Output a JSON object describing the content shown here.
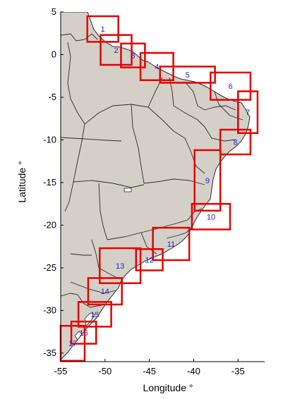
{
  "axes": {
    "xlabel": "Longitude °",
    "ylabel": "Latitude °",
    "xlim": [
      -55,
      -32
    ],
    "ylim": [
      -36,
      5
    ],
    "xticks": [
      -55,
      -50,
      -45,
      -40,
      -35
    ],
    "yticks": [
      5,
      0,
      -5,
      -10,
      -15,
      -20,
      -25,
      -30,
      -35
    ]
  },
  "colors": {
    "land": "#d4d0c8",
    "border": "#2a2a2a",
    "box": "#e60000",
    "box_label": "#1f1fd6"
  },
  "boxes": [
    {
      "id": "1",
      "lon": [
        -52.0,
        -48.5
      ],
      "lat": [
        1.5,
        4.5
      ]
    },
    {
      "id": "2",
      "lon": [
        -50.5,
        -47.0
      ],
      "lat": [
        -1.2,
        2.3
      ]
    },
    {
      "id": "3",
      "lon": [
        -48.2,
        -45.5
      ],
      "lat": [
        -1.5,
        1.3
      ]
    },
    {
      "id": "4",
      "lon": [
        -46.0,
        -42.3
      ],
      "lat": [
        -3.0,
        0.2
      ]
    },
    {
      "id": "5",
      "lon": [
        -43.8,
        -37.6
      ],
      "lat": [
        -3.3,
        -1.4
      ]
    },
    {
      "id": "6",
      "lon": [
        -38.1,
        -33.6
      ],
      "lat": [
        -5.3,
        -2.1
      ]
    },
    {
      "id": "7",
      "lon": [
        -35.0,
        -32.8
      ],
      "lat": [
        -9.2,
        -4.3
      ]
    },
    {
      "id": "8",
      "lon": [
        -37.0,
        -33.6
      ],
      "lat": [
        -11.7,
        -8.8
      ]
    },
    {
      "id": "9",
      "lon": [
        -39.9,
        -37.0
      ],
      "lat": [
        -18.3,
        -11.2
      ]
    },
    {
      "id": "10",
      "lon": [
        -40.2,
        -35.9
      ],
      "lat": [
        -20.5,
        -17.5
      ]
    },
    {
      "id": "11",
      "lon": [
        -44.6,
        -40.5
      ],
      "lat": [
        -24.1,
        -20.3
      ]
    },
    {
      "id": "12",
      "lon": [
        -46.5,
        -43.5
      ],
      "lat": [
        -25.3,
        -22.8
      ]
    },
    {
      "id": "13",
      "lon": [
        -50.6,
        -46.0
      ],
      "lat": [
        -26.8,
        -22.7
      ]
    },
    {
      "id": "14",
      "lon": [
        -51.9,
        -48.1
      ],
      "lat": [
        -29.3,
        -26.2
      ]
    },
    {
      "id": "15",
      "lon": [
        -53.0,
        -49.3
      ],
      "lat": [
        -31.9,
        -29.0
      ]
    },
    {
      "id": "16",
      "lon": [
        -53.8,
        -51.0
      ],
      "lat": [
        -33.9,
        -31.3
      ]
    },
    {
      "id": "17",
      "lon": [
        -55.0,
        -52.3
      ],
      "lat": [
        -35.9,
        -31.8
      ]
    }
  ]
}
